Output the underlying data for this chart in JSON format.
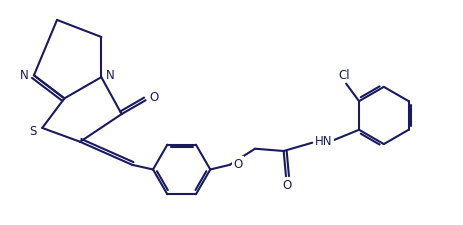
{
  "bg_color": "#ffffff",
  "line_color": "#1a1a5e",
  "line_width": 1.5,
  "figsize": [
    4.63,
    2.26
  ],
  "dpi": 100,
  "xlim": [
    0,
    10
  ],
  "ylim": [
    0,
    4.85
  ]
}
